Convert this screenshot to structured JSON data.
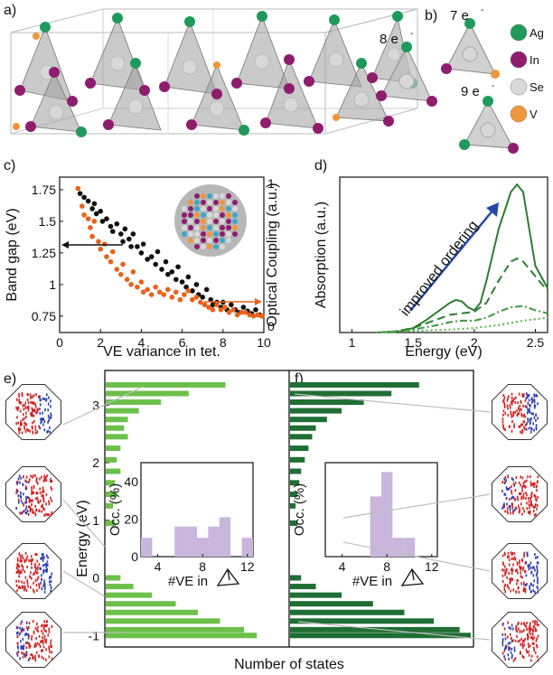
{
  "panels": {
    "a": "a)",
    "b": "b)",
    "c": "c)",
    "d": "d)",
    "e": "e)",
    "f": "f)"
  },
  "panel_b": {
    "tet_labels": [
      "8 e",
      "7 e",
      "9 e"
    ],
    "minus": "-",
    "legend": [
      {
        "label": "Ag",
        "color": "#1f9a5a"
      },
      {
        "label": "In",
        "color": "#8e1d6e"
      },
      {
        "label": "Se",
        "color": "#d9d9d9"
      },
      {
        "label": "V",
        "color": "#f0963a"
      }
    ]
  },
  "chart_data": [
    {
      "id": "c",
      "type": "scatter",
      "xlabel": "VE variance in tet.",
      "ylabel": "Band gap (eV)",
      "ylabel_right": "Optical Coupling (a.u.)",
      "xlim": [
        0,
        10
      ],
      "ylim": [
        0.62,
        1.85
      ],
      "xticks": [
        "0",
        "2",
        "4",
        "6",
        "8",
        "10"
      ],
      "yticks": [
        "0.75",
        "1",
        "1.25",
        "1.5",
        "1.75"
      ],
      "right_ticks": [
        "0",
        "1"
      ],
      "series": [
        {
          "name": "Band gap",
          "color": "#111111",
          "points": [
            [
              1,
              1.72
            ],
            [
              1.2,
              1.69
            ],
            [
              1.4,
              1.66
            ],
            [
              1.6,
              1.6
            ],
            [
              1.7,
              1.64
            ],
            [
              1.8,
              1.56
            ],
            [
              2,
              1.58
            ],
            [
              2.1,
              1.5
            ],
            [
              2.3,
              1.52
            ],
            [
              2.5,
              1.46
            ],
            [
              2.6,
              1.42
            ],
            [
              2.8,
              1.48
            ],
            [
              3,
              1.4
            ],
            [
              3.1,
              1.34
            ],
            [
              3.2,
              1.44
            ],
            [
              3.4,
              1.36
            ],
            [
              3.5,
              1.3
            ],
            [
              3.6,
              1.4
            ],
            [
              3.8,
              1.3
            ],
            [
              4,
              1.25
            ],
            [
              4.1,
              1.32
            ],
            [
              4.3,
              1.2
            ],
            [
              4.5,
              1.22
            ],
            [
              4.7,
              1.16
            ],
            [
              4.8,
              1.26
            ],
            [
              5,
              1.12
            ],
            [
              5.2,
              1.18
            ],
            [
              5.3,
              1.08
            ],
            [
              5.5,
              1.1
            ],
            [
              5.7,
              1.04
            ],
            [
              5.8,
              1.14
            ],
            [
              6,
              1.02
            ],
            [
              6.2,
              0.98
            ],
            [
              6.3,
              1.06
            ],
            [
              6.5,
              0.95
            ],
            [
              6.7,
              1.0
            ],
            [
              6.8,
              0.92
            ],
            [
              7,
              0.9
            ],
            [
              7.2,
              0.96
            ],
            [
              7.4,
              0.88
            ],
            [
              7.5,
              0.84
            ],
            [
              7.7,
              0.86
            ],
            [
              7.9,
              0.82
            ],
            [
              8,
              0.86
            ],
            [
              8.2,
              0.8
            ],
            [
              8.4,
              0.84
            ],
            [
              8.6,
              0.8
            ],
            [
              8.8,
              0.78
            ],
            [
              9,
              0.82
            ],
            [
              9.2,
              0.79
            ],
            [
              9.4,
              0.77
            ],
            [
              9.6,
              0.8
            ],
            [
              9.8,
              0.76
            ]
          ]
        },
        {
          "name": "Optical Coupling",
          "color": "#e8621a",
          "points": [
            [
              0.9,
              1.76
            ],
            [
              1.1,
              1.62
            ],
            [
              1.2,
              1.55
            ],
            [
              1.4,
              1.52
            ],
            [
              1.5,
              1.45
            ],
            [
              1.6,
              1.38
            ],
            [
              1.7,
              1.5
            ],
            [
              1.9,
              1.34
            ],
            [
              2,
              1.28
            ],
            [
              2.2,
              1.32
            ],
            [
              2.3,
              1.22
            ],
            [
              2.5,
              1.18
            ],
            [
              2.6,
              1.26
            ],
            [
              2.8,
              1.12
            ],
            [
              3,
              1.08
            ],
            [
              3.1,
              1.16
            ],
            [
              3.3,
              1.04
            ],
            [
              3.5,
              1.0
            ],
            [
              3.6,
              1.1
            ],
            [
              3.8,
              0.98
            ],
            [
              4,
              1.02
            ],
            [
              4.1,
              0.94
            ],
            [
              4.3,
              0.96
            ],
            [
              4.5,
              0.92
            ],
            [
              4.7,
              0.98
            ],
            [
              4.9,
              0.94
            ],
            [
              5.1,
              0.92
            ],
            [
              5.3,
              0.96
            ],
            [
              5.5,
              0.9
            ],
            [
              5.7,
              0.94
            ],
            [
              5.9,
              0.88
            ],
            [
              6.1,
              0.92
            ],
            [
              6.3,
              0.95
            ],
            [
              6.5,
              0.88
            ],
            [
              6.7,
              0.9
            ],
            [
              6.9,
              0.86
            ],
            [
              7.1,
              0.84
            ],
            [
              7.3,
              0.82
            ],
            [
              7.5,
              0.8
            ],
            [
              7.7,
              0.84
            ],
            [
              7.9,
              0.8
            ],
            [
              8.1,
              0.82
            ],
            [
              8.3,
              0.78
            ],
            [
              8.5,
              0.8
            ],
            [
              8.7,
              0.76
            ],
            [
              8.9,
              0.78
            ],
            [
              9.1,
              0.78
            ],
            [
              9.3,
              0.76
            ],
            [
              9.5,
              0.75
            ],
            [
              9.7,
              0.76
            ],
            [
              9.9,
              0.75
            ]
          ]
        }
      ]
    },
    {
      "id": "d",
      "type": "line",
      "xlabel": "Energy (eV)",
      "ylabel": "Absorption (a.u.)",
      "xlim": [
        0.9,
        2.6
      ],
      "ylim": [
        0,
        1.05
      ],
      "xticks": [
        "1",
        "1.5",
        "2",
        "2.5"
      ],
      "annotation": "improved ordering",
      "series": [
        {
          "name": "solid",
          "style": "solid",
          "color": "#2e7d32",
          "x": [
            1.2,
            1.4,
            1.5,
            1.6,
            1.7,
            1.8,
            1.85,
            1.9,
            1.95,
            2.0,
            2.05,
            2.1,
            2.2,
            2.3,
            2.35,
            2.4,
            2.45,
            2.5,
            2.6
          ],
          "y": [
            0.0,
            0.01,
            0.03,
            0.08,
            0.14,
            0.2,
            0.22,
            0.21,
            0.17,
            0.15,
            0.2,
            0.35,
            0.7,
            0.95,
            1.0,
            0.95,
            0.7,
            0.45,
            0.3
          ]
        },
        {
          "name": "dashed",
          "style": "dashed",
          "color": "#2e7d32",
          "x": [
            1.3,
            1.5,
            1.6,
            1.7,
            1.8,
            1.9,
            2.0,
            2.1,
            2.2,
            2.3,
            2.35,
            2.4,
            2.5,
            2.6
          ],
          "y": [
            0.0,
            0.03,
            0.06,
            0.09,
            0.12,
            0.13,
            0.14,
            0.2,
            0.35,
            0.48,
            0.5,
            0.48,
            0.38,
            0.28
          ]
        },
        {
          "name": "dashdot",
          "style": "dashdot",
          "color": "#3d9a40",
          "x": [
            1.3,
            1.5,
            1.7,
            1.8,
            1.9,
            2.0,
            2.1,
            2.2,
            2.3,
            2.4,
            2.5,
            2.6
          ],
          "y": [
            0.0,
            0.02,
            0.05,
            0.07,
            0.08,
            0.08,
            0.1,
            0.14,
            0.17,
            0.18,
            0.15,
            0.13
          ]
        },
        {
          "name": "dotted",
          "style": "dotted",
          "color": "#59b34a",
          "x": [
            1.2,
            1.5,
            1.8,
            2.0,
            2.2,
            2.4,
            2.5,
            2.6
          ],
          "y": [
            0.0,
            0.01,
            0.02,
            0.03,
            0.05,
            0.08,
            0.09,
            0.1
          ]
        }
      ]
    },
    {
      "id": "e",
      "type": "bar",
      "orientation": "horizontal",
      "color": "#6cc04a",
      "ylabel": "Energy (eV)",
      "xlabel": "Number of states",
      "ylim": [
        -1.2,
        3.6
      ],
      "yticks": [
        "-1",
        "0",
        "1",
        "2",
        "3"
      ],
      "bars": [
        [
          3.35,
          0.65
        ],
        [
          3.2,
          0.45
        ],
        [
          3.05,
          0.3
        ],
        [
          2.9,
          0.18
        ],
        [
          2.75,
          0.12
        ],
        [
          2.6,
          0.1
        ],
        [
          2.45,
          0.12
        ],
        [
          2.25,
          0.08
        ],
        [
          2.05,
          0.06
        ],
        [
          1.85,
          0.08
        ],
        [
          1.65,
          0.05
        ],
        [
          1.45,
          0.06
        ],
        [
          1.25,
          0.04
        ],
        [
          0.95,
          0.05
        ],
        [
          0.0,
          0.08
        ],
        [
          -0.15,
          0.15
        ],
        [
          -0.3,
          0.25
        ],
        [
          -0.45,
          0.38
        ],
        [
          -0.6,
          0.5
        ],
        [
          -0.75,
          0.62
        ],
        [
          -0.9,
          0.75
        ],
        [
          -1.0,
          0.82
        ]
      ],
      "inset": {
        "type": "bar",
        "ylabel": "Occ. (%)",
        "xlabel": "#VE in",
        "xticks": [
          "4",
          "8",
          "12"
        ],
        "yticks": [
          "0",
          "20",
          "40"
        ],
        "categories": [
          3,
          4,
          5,
          6,
          7,
          8,
          9,
          10,
          11,
          12
        ],
        "values": [
          10,
          0,
          0,
          16,
          16,
          10,
          16,
          21,
          0,
          10
        ],
        "color": "#c9b6dc"
      }
    },
    {
      "id": "f",
      "type": "bar",
      "orientation": "horizontal",
      "color": "#1f6e34",
      "ylim": [
        -1.2,
        3.6
      ],
      "bars": [
        [
          3.35,
          0.7
        ],
        [
          3.2,
          0.55
        ],
        [
          3.05,
          0.4
        ],
        [
          2.9,
          0.28
        ],
        [
          2.75,
          0.2
        ],
        [
          2.6,
          0.14
        ],
        [
          2.45,
          0.12
        ],
        [
          2.25,
          0.1
        ],
        [
          2.05,
          0.08
        ],
        [
          1.85,
          0.06
        ],
        [
          1.65,
          0.05
        ],
        [
          1.45,
          0.04
        ],
        [
          1.25,
          0.03
        ],
        [
          0.95,
          0.04
        ],
        [
          0.0,
          0.06
        ],
        [
          -0.15,
          0.14
        ],
        [
          -0.3,
          0.28
        ],
        [
          -0.45,
          0.45
        ],
        [
          -0.6,
          0.62
        ],
        [
          -0.75,
          0.78
        ],
        [
          -0.9,
          0.92
        ],
        [
          -1.0,
          0.98
        ]
      ],
      "inset": {
        "type": "bar",
        "ylabel": "Occ. (%)",
        "xlabel": "#VE in",
        "xticks": [
          "4",
          "8",
          "12"
        ],
        "categories": [
          7,
          8,
          9,
          10
        ],
        "values": [
          32,
          45,
          10,
          10
        ],
        "color": "#c9b6dc"
      }
    }
  ]
}
